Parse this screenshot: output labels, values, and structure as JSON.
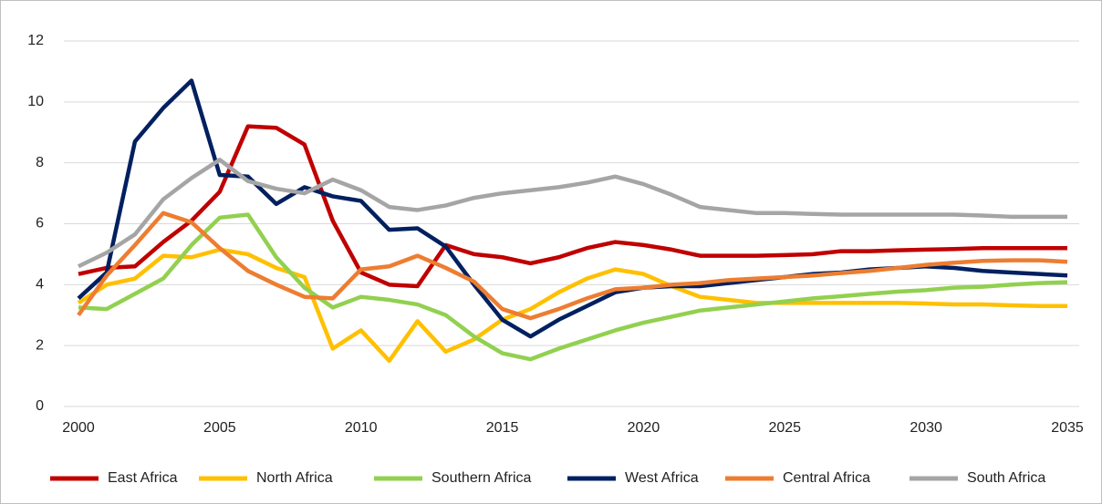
{
  "chart_data": {
    "type": "line",
    "x": [
      2000,
      2001,
      2002,
      2003,
      2004,
      2005,
      2006,
      2007,
      2008,
      2009,
      2010,
      2011,
      2012,
      2013,
      2014,
      2015,
      2016,
      2017,
      2018,
      2019,
      2020,
      2021,
      2022,
      2023,
      2024,
      2025,
      2026,
      2027,
      2028,
      2029,
      2030,
      2031,
      2032,
      2033,
      2034,
      2035
    ],
    "xlim": [
      2000,
      2035
    ],
    "xticks": [
      2000,
      2005,
      2010,
      2015,
      2020,
      2025,
      2030,
      2035
    ],
    "ylim": [
      0,
      12
    ],
    "yticks": [
      0,
      2,
      4,
      6,
      8,
      10,
      12
    ],
    "grid": true,
    "legend": "bottom",
    "series": [
      {
        "name": "East Africa",
        "color": "#c00000",
        "values": [
          4.35,
          4.55,
          4.6,
          5.4,
          6.1,
          7.05,
          9.2,
          9.15,
          8.6,
          6.1,
          4.4,
          4.0,
          3.95,
          5.3,
          5.0,
          4.9,
          4.7,
          4.9,
          5.2,
          5.4,
          5.3,
          5.15,
          4.95,
          4.95,
          4.95,
          4.97,
          5.0,
          5.1,
          5.1,
          5.13,
          5.15,
          5.17,
          5.2,
          5.2,
          5.2,
          5.2
        ]
      },
      {
        "name": "North Africa",
        "color": "#ffc000",
        "values": [
          3.4,
          4.0,
          4.2,
          4.95,
          4.9,
          5.15,
          5.0,
          4.55,
          4.25,
          1.9,
          2.5,
          1.5,
          2.8,
          1.8,
          2.2,
          2.85,
          3.2,
          3.75,
          4.2,
          4.5,
          4.35,
          3.95,
          3.6,
          3.5,
          3.4,
          3.4,
          3.4,
          3.4,
          3.4,
          3.4,
          3.38,
          3.35,
          3.35,
          3.32,
          3.3,
          3.3
        ]
      },
      {
        "name": "Southern Africa",
        "color": "#92d050",
        "values": [
          3.25,
          3.2,
          3.7,
          4.2,
          5.3,
          6.2,
          6.3,
          4.9,
          3.9,
          3.25,
          3.6,
          3.5,
          3.35,
          3.0,
          2.3,
          1.75,
          1.55,
          1.9,
          2.2,
          2.5,
          2.75,
          2.95,
          3.15,
          3.25,
          3.35,
          3.45,
          3.55,
          3.62,
          3.7,
          3.77,
          3.82,
          3.9,
          3.93,
          4.0,
          4.05,
          4.08
        ]
      },
      {
        "name": "West Africa",
        "color": "#002060",
        "values": [
          3.55,
          4.4,
          8.7,
          9.8,
          10.7,
          7.6,
          7.55,
          6.65,
          7.2,
          6.9,
          6.75,
          5.8,
          5.85,
          5.25,
          4.0,
          2.85,
          2.3,
          2.85,
          3.3,
          3.75,
          3.9,
          3.95,
          3.95,
          4.05,
          4.15,
          4.25,
          4.35,
          4.4,
          4.5,
          4.55,
          4.6,
          4.55,
          4.45,
          4.4,
          4.35,
          4.3
        ]
      },
      {
        "name": "Central Africa",
        "color": "#ed7d31",
        "values": [
          3.0,
          4.3,
          5.3,
          6.35,
          6.05,
          5.2,
          4.45,
          4.0,
          3.6,
          3.55,
          4.5,
          4.6,
          4.95,
          4.55,
          4.1,
          3.2,
          2.9,
          3.2,
          3.55,
          3.85,
          3.9,
          4.0,
          4.05,
          4.15,
          4.2,
          4.25,
          4.3,
          4.38,
          4.45,
          4.55,
          4.65,
          4.72,
          4.78,
          4.8,
          4.8,
          4.75
        ]
      },
      {
        "name": "South Africa",
        "color": "#a5a5a5",
        "values": [
          4.6,
          5.05,
          5.65,
          6.8,
          7.5,
          8.1,
          7.4,
          7.15,
          7.0,
          7.45,
          7.1,
          6.55,
          6.45,
          6.6,
          6.85,
          7.0,
          7.1,
          7.2,
          7.35,
          7.55,
          7.3,
          6.95,
          6.55,
          6.45,
          6.35,
          6.35,
          6.32,
          6.3,
          6.3,
          6.3,
          6.3,
          6.3,
          6.27,
          6.23,
          6.23,
          6.23
        ]
      }
    ]
  }
}
